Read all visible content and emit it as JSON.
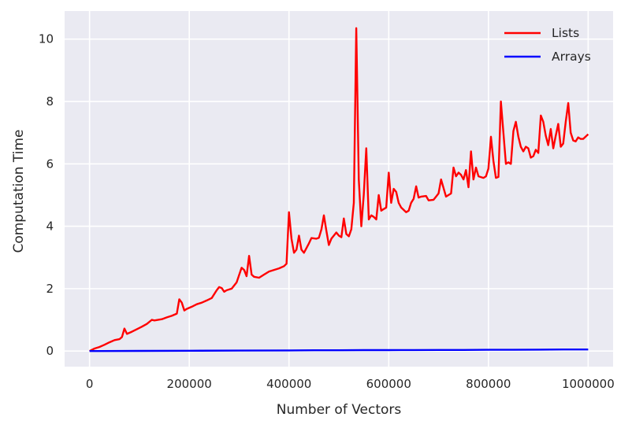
{
  "chart_data": {
    "type": "line",
    "title": "",
    "xlabel": "Number of Vectors",
    "ylabel": "Computation Time",
    "xlim": [
      -50000,
      1050000
    ],
    "ylim": [
      -0.5,
      10.9
    ],
    "grid": true,
    "legend_position": "top-right",
    "x_ticks": [
      0,
      200000,
      400000,
      600000,
      800000,
      1000000
    ],
    "x_tick_labels": [
      "0",
      "200000",
      "400000",
      "600000",
      "800000",
      "1000000"
    ],
    "y_ticks": [
      0,
      2,
      4,
      6,
      8,
      10
    ],
    "y_tick_labels": [
      "0",
      "2",
      "4",
      "6",
      "8",
      "10"
    ],
    "colors": {
      "background": "#EAEAF2",
      "grid": "#FFFFFF",
      "lists": "#FF0000",
      "arrays": "#0000FF"
    },
    "series": [
      {
        "name": "Lists",
        "color": "#FF0000",
        "x": [
          0,
          10000,
          20000,
          30000,
          40000,
          50000,
          60000,
          65000,
          70000,
          75000,
          85000,
          95000,
          105000,
          115000,
          125000,
          130000,
          145000,
          155000,
          165000,
          175000,
          180000,
          185000,
          190000,
          195000,
          205000,
          215000,
          225000,
          235000,
          245000,
          255000,
          260000,
          265000,
          270000,
          275000,
          285000,
          295000,
          305000,
          310000,
          315000,
          320000,
          325000,
          330000,
          340000,
          350000,
          360000,
          370000,
          380000,
          390000,
          395000,
          400000,
          405000,
          410000,
          415000,
          420000,
          425000,
          430000,
          435000,
          440000,
          445000,
          455000,
          460000,
          465000,
          470000,
          475000,
          480000,
          485000,
          495000,
          500000,
          505000,
          510000,
          515000,
          520000,
          525000,
          530000,
          535000,
          540000,
          545000,
          550000,
          555000,
          560000,
          565000,
          570000,
          575000,
          580000,
          585000,
          590000,
          595000,
          600000,
          605000,
          610000,
          615000,
          620000,
          625000,
          635000,
          640000,
          645000,
          650000,
          655000,
          660000,
          665000,
          675000,
          680000,
          690000,
          695000,
          700000,
          705000,
          715000,
          720000,
          725000,
          730000,
          735000,
          740000,
          745000,
          750000,
          755000,
          760000,
          765000,
          770000,
          775000,
          780000,
          790000,
          795000,
          800000,
          805000,
          810000,
          815000,
          820000,
          825000,
          830000,
          835000,
          840000,
          845000,
          850000,
          855000,
          860000,
          865000,
          870000,
          875000,
          880000,
          885000,
          890000,
          895000,
          900000,
          905000,
          910000,
          915000,
          920000,
          925000,
          930000,
          935000,
          940000,
          945000,
          950000,
          955000,
          960000,
          965000,
          970000,
          975000,
          980000,
          985000,
          990000,
          1000000
        ],
        "y": [
          0.0,
          0.08,
          0.13,
          0.2,
          0.28,
          0.35,
          0.38,
          0.45,
          0.72,
          0.55,
          0.62,
          0.7,
          0.78,
          0.87,
          1.0,
          0.98,
          1.02,
          1.08,
          1.13,
          1.2,
          1.66,
          1.55,
          1.3,
          1.35,
          1.42,
          1.5,
          1.55,
          1.62,
          1.7,
          1.95,
          2.05,
          2.02,
          1.9,
          1.95,
          2.0,
          2.2,
          2.67,
          2.6,
          2.4,
          3.05,
          2.45,
          2.38,
          2.35,
          2.45,
          2.55,
          2.6,
          2.65,
          2.72,
          2.8,
          4.45,
          3.6,
          3.15,
          3.25,
          3.7,
          3.25,
          3.15,
          3.3,
          3.45,
          3.62,
          3.6,
          3.63,
          3.9,
          4.35,
          3.85,
          3.4,
          3.6,
          3.8,
          3.7,
          3.65,
          4.25,
          3.75,
          3.68,
          3.9,
          4.75,
          10.35,
          5.5,
          4.0,
          5.0,
          6.5,
          4.22,
          4.35,
          4.3,
          4.22,
          5.0,
          4.5,
          4.55,
          4.6,
          5.72,
          4.75,
          5.2,
          5.1,
          4.75,
          4.6,
          4.45,
          4.5,
          4.75,
          4.88,
          5.28,
          4.92,
          4.95,
          4.97,
          4.83,
          4.85,
          4.95,
          5.05,
          5.5,
          4.95,
          5.0,
          5.05,
          5.88,
          5.6,
          5.72,
          5.65,
          5.5,
          5.8,
          5.25,
          6.4,
          5.5,
          5.88,
          5.6,
          5.55,
          5.6,
          5.85,
          6.87,
          6.1,
          5.55,
          5.58,
          8.0,
          7.0,
          6.0,
          6.05,
          6.0,
          7.05,
          7.35,
          6.87,
          6.55,
          6.4,
          6.55,
          6.5,
          6.2,
          6.25,
          6.45,
          6.35,
          7.55,
          7.35,
          6.9,
          6.6,
          7.12,
          6.5,
          6.9,
          7.28,
          6.55,
          6.65,
          7.35,
          7.95,
          7.0,
          6.75,
          6.72,
          6.85,
          6.8,
          6.8,
          6.95
        ]
      },
      {
        "name": "Arrays",
        "color": "#0000FF",
        "x": [
          0,
          100000,
          200000,
          300000,
          400000,
          450000,
          500000,
          550000,
          600000,
          650000,
          700000,
          750000,
          800000,
          850000,
          900000,
          950000,
          1000000
        ],
        "y": [
          0.0,
          0.005,
          0.01,
          0.015,
          0.02,
          0.025,
          0.025,
          0.03,
          0.03,
          0.033,
          0.035,
          0.035,
          0.04,
          0.04,
          0.045,
          0.05,
          0.05
        ]
      }
    ]
  }
}
